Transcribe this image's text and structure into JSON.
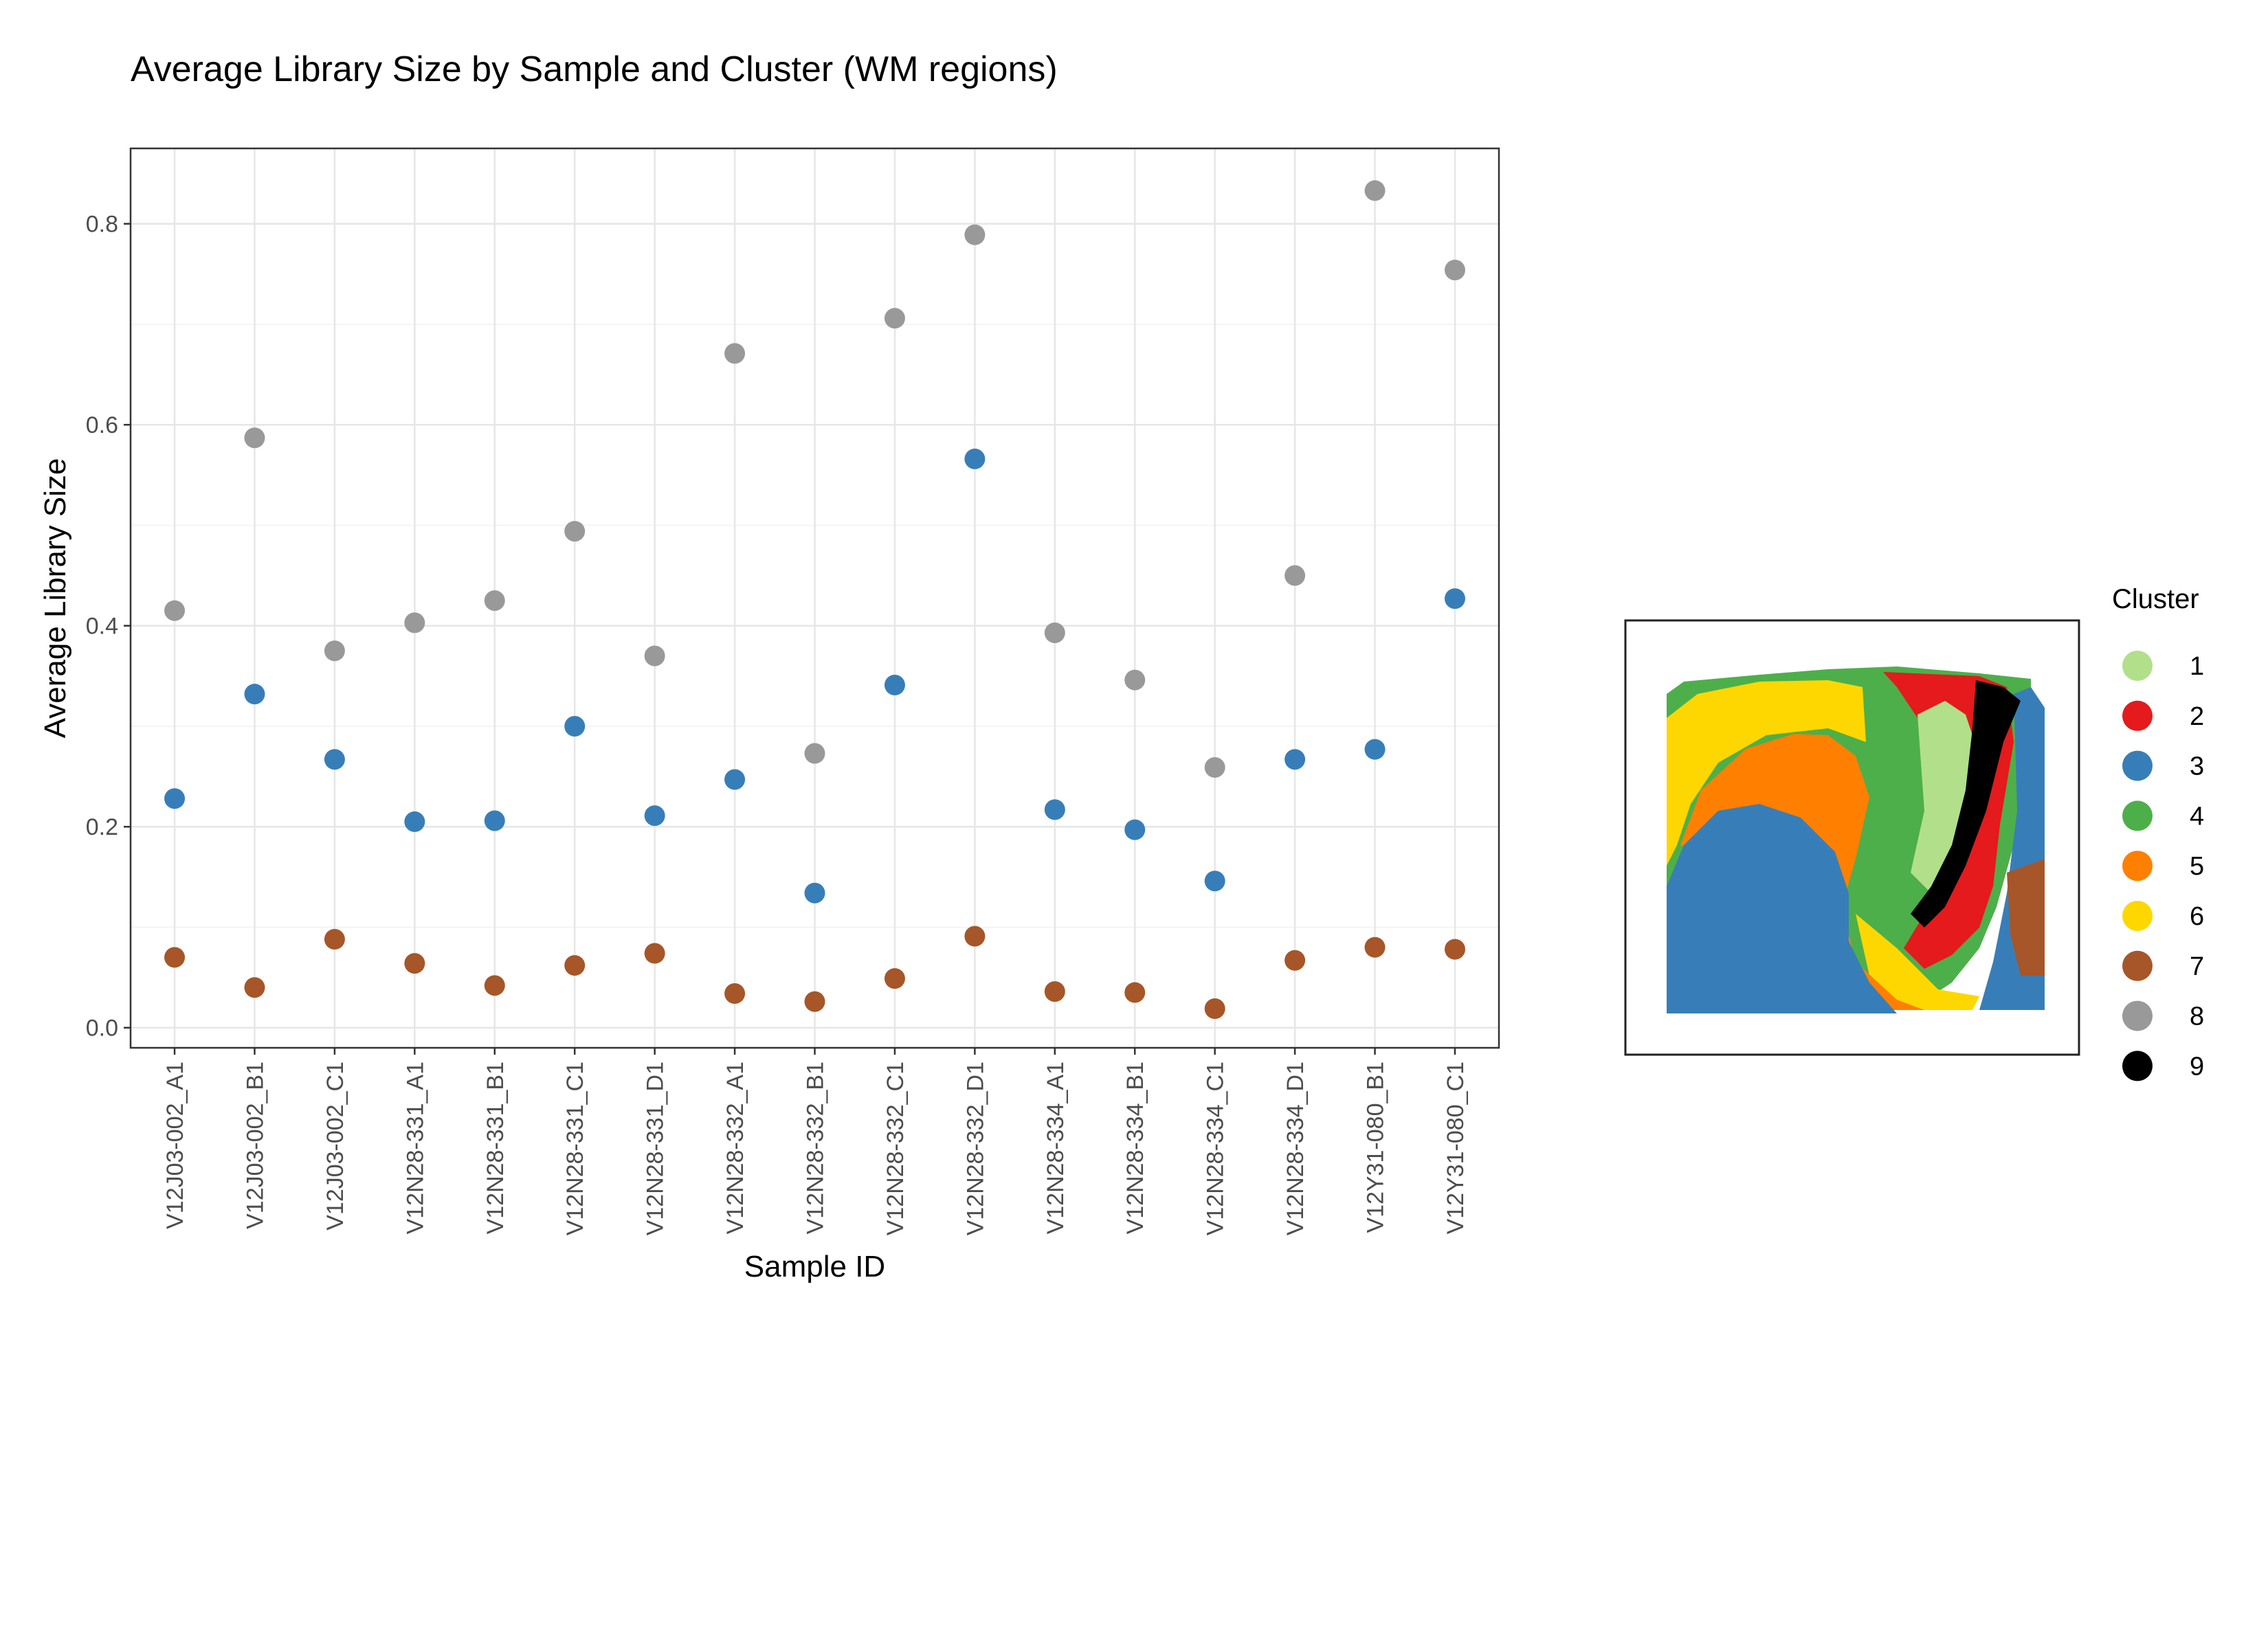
{
  "chart_data": {
    "type": "scatter",
    "title": "Average Library Size by Sample and Cluster (WM regions)",
    "xlabel": "Sample ID",
    "ylabel": "Average Library Size",
    "ylim": [
      -0.02,
      0.875
    ],
    "yticks": [
      0.0,
      0.2,
      0.4,
      0.6,
      0.8
    ],
    "ytick_labels": [
      "0.0",
      "0.2",
      "0.4",
      "0.6",
      "0.8"
    ],
    "grid": true,
    "categories": [
      "V12J03-002_A1",
      "V12J03-002_B1",
      "V12J03-002_C1",
      "V12N28-331_A1",
      "V12N28-331_B1",
      "V12N28-331_C1",
      "V12N28-331_D1",
      "V12N28-332_A1",
      "V12N28-332_B1",
      "V12N28-332_C1",
      "V12N28-332_D1",
      "V12N28-334_A1",
      "V12N28-334_B1",
      "V12N28-334_C1",
      "V12N28-334_D1",
      "V12Y31-080_B1",
      "V12Y31-080_C1"
    ],
    "series": [
      {
        "name": "8",
        "color": "#999999",
        "values": [
          0.415,
          0.587,
          0.375,
          0.403,
          0.425,
          0.494,
          0.37,
          0.671,
          0.273,
          0.706,
          0.789,
          0.393,
          0.346,
          0.259,
          0.45,
          0.833,
          0.754
        ]
      },
      {
        "name": "3",
        "color": "#377EB8",
        "values": [
          0.228,
          0.332,
          0.267,
          0.205,
          0.206,
          0.3,
          0.211,
          0.247,
          0.134,
          0.341,
          0.566,
          0.217,
          0.197,
          0.146,
          0.267,
          0.277,
          0.427
        ]
      },
      {
        "name": "7",
        "color": "#A65628",
        "values": [
          0.07,
          0.04,
          0.088,
          0.064,
          0.042,
          0.062,
          0.074,
          0.034,
          0.026,
          0.049,
          0.091,
          0.036,
          0.035,
          0.019,
          0.067,
          0.08,
          0.078
        ]
      }
    ],
    "legend": {
      "title": "Cluster",
      "placement": "right",
      "entries": [
        {
          "label": "1",
          "color": "#B2DF8A"
        },
        {
          "label": "2",
          "color": "#E41A1C"
        },
        {
          "label": "3",
          "color": "#377EB8"
        },
        {
          "label": "4",
          "color": "#4DAF4A"
        },
        {
          "label": "5",
          "color": "#FF7F00"
        },
        {
          "label": "6",
          "color": "#FFD700"
        },
        {
          "label": "7",
          "color": "#A65628"
        },
        {
          "label": "8",
          "color": "#999999"
        },
        {
          "label": "9",
          "color": "#000000"
        }
      ]
    },
    "inset": {
      "type": "spatial-tissue-map",
      "colors": {
        "c1": "#B2DF8A",
        "c2": "#E41A1C",
        "c3": "#377EB8",
        "c4": "#4DAF4A",
        "c5": "#FF7F00",
        "c6": "#FFD700",
        "c7": "#A65628",
        "c9": "#000000"
      }
    }
  }
}
